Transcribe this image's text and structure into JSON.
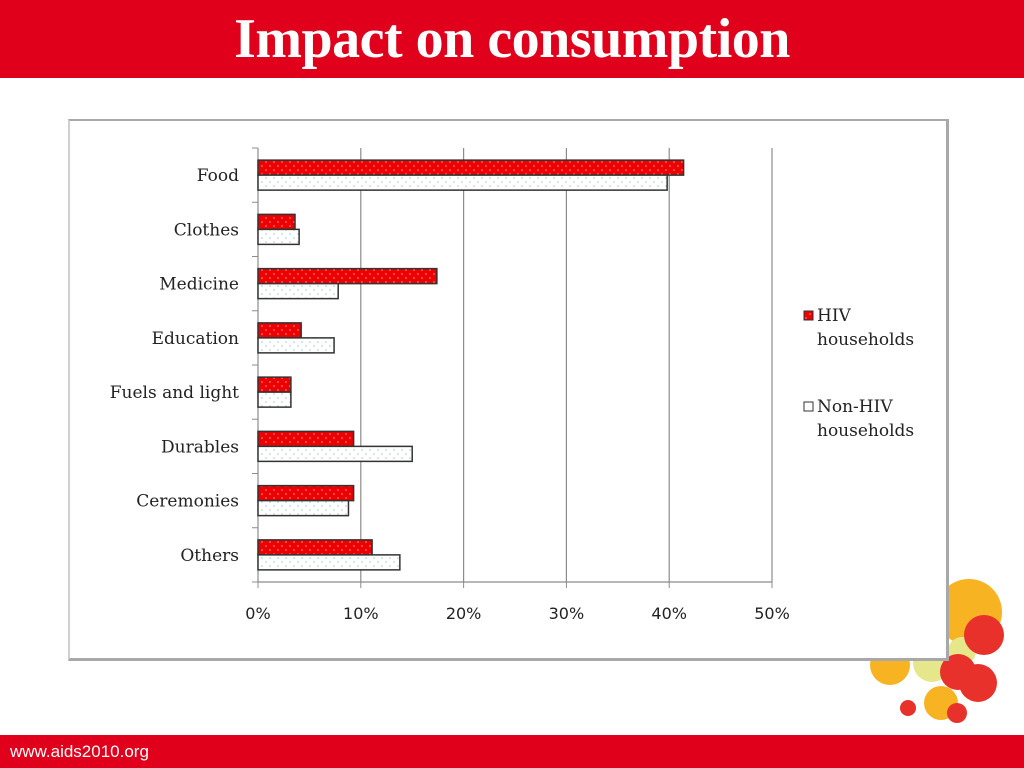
{
  "slide": {
    "title": "Impact on consumption",
    "footer_url": "www.aids2010.org",
    "brand_color": "#e0001b"
  },
  "chart_data": {
    "type": "bar",
    "orientation": "horizontal",
    "title": "",
    "xlabel": "",
    "ylabel": "",
    "categories": [
      "Food",
      "Clothes",
      "Medicine",
      "Education",
      "Fuels and light",
      "Durables",
      "Ceremonies",
      "Others"
    ],
    "series": [
      {
        "name": "HIV households",
        "color": "#ee0000",
        "pattern": "dotted",
        "values": [
          41.4,
          3.6,
          17.4,
          4.2,
          3.2,
          9.3,
          9.3,
          11.1
        ]
      },
      {
        "name": "Non-HIV households",
        "color": "#ffffff",
        "pattern": "dotted",
        "values": [
          39.8,
          4.0,
          7.8,
          7.4,
          3.2,
          15.0,
          8.8,
          13.8
        ]
      }
    ],
    "xlim": [
      0,
      50
    ],
    "xticks": [
      0,
      10,
      20,
      30,
      40,
      50
    ],
    "xtick_labels": [
      "0%",
      "10%",
      "20%",
      "30%",
      "40%",
      "50%"
    ],
    "value_format": "percent",
    "grid": "vertical major gridlines on",
    "legend": {
      "position": "right",
      "entries": [
        {
          "lines": [
            "HIV",
            "households"
          ]
        },
        {
          "lines": [
            "Non-HIV",
            "households"
          ]
        }
      ]
    }
  }
}
